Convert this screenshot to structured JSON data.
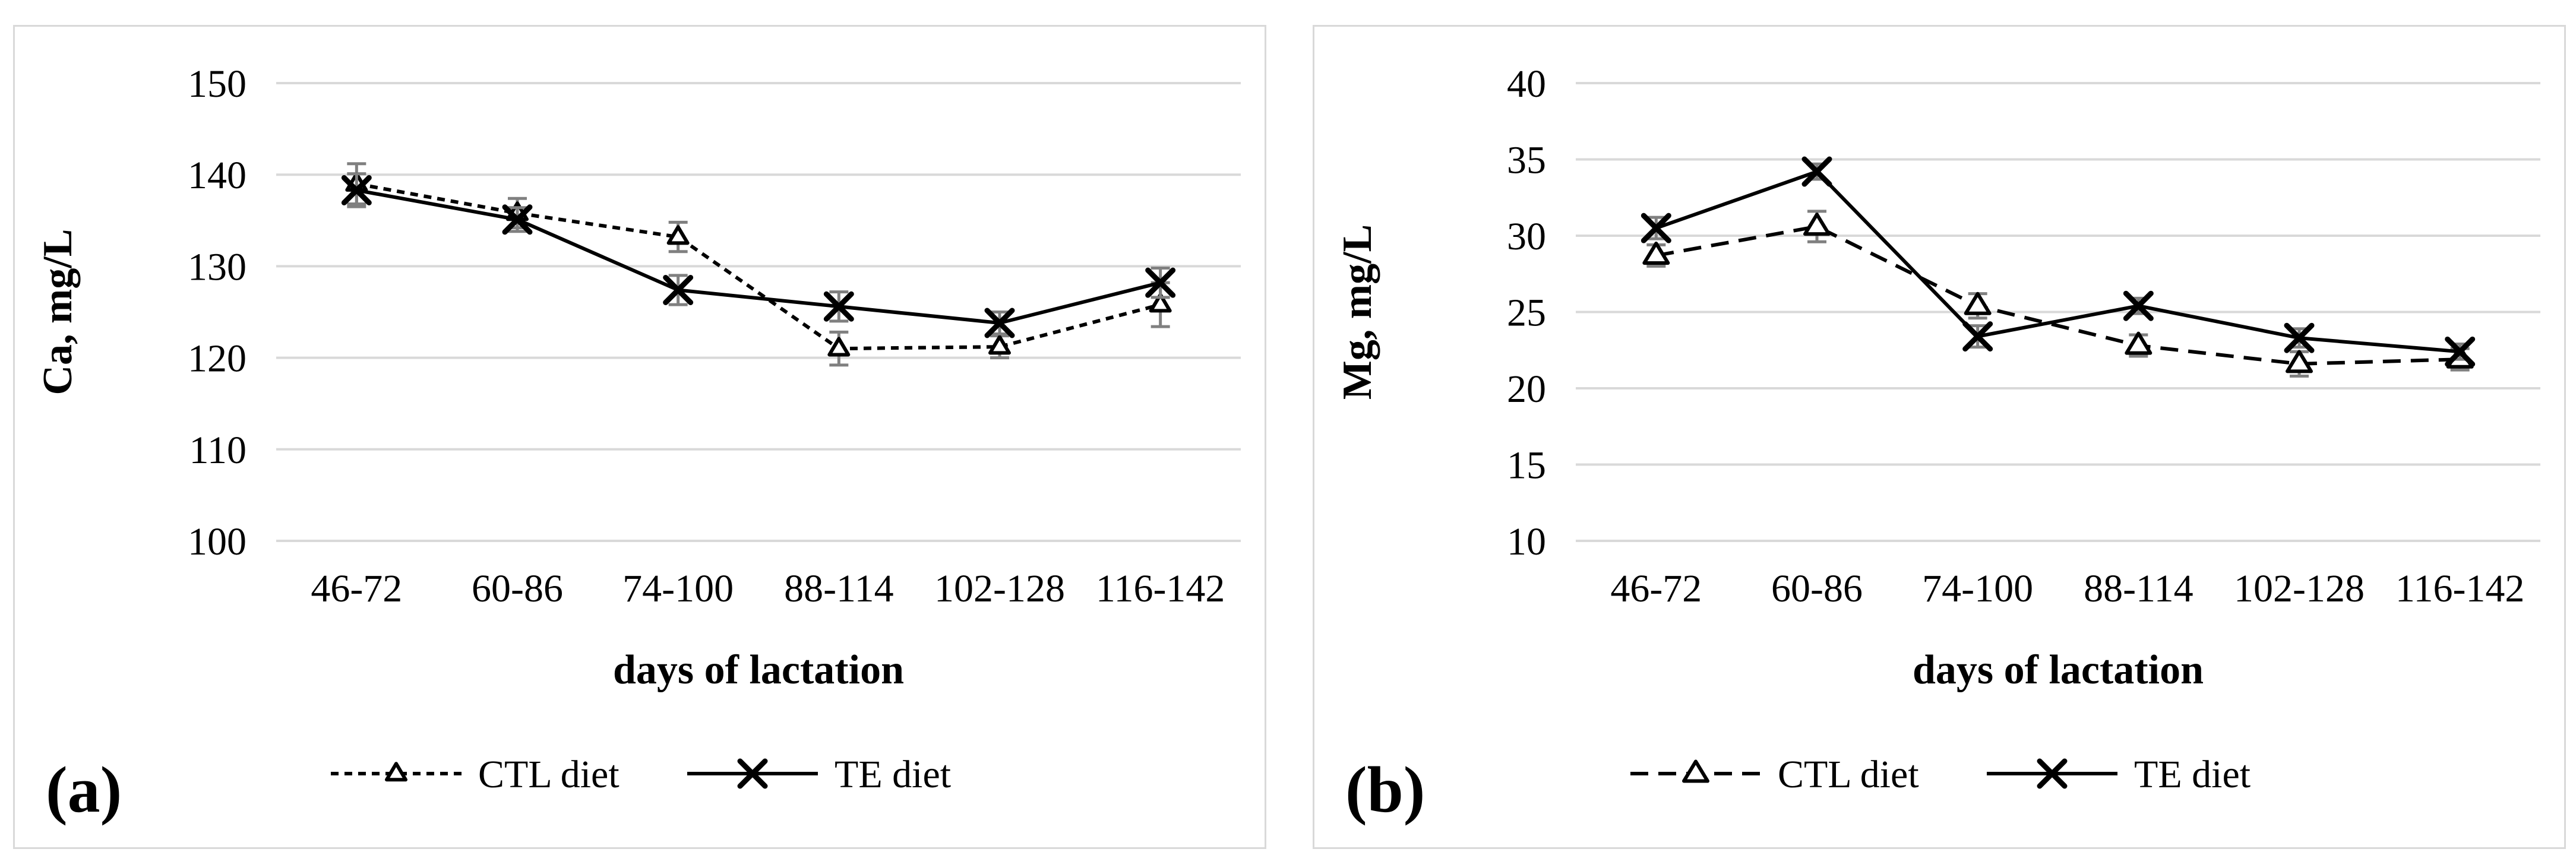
{
  "figure": {
    "background": "#ffffff",
    "panel_border_color": "#d9d9d9",
    "ink_color": "#000000",
    "gridline_color": "#d9d9d9",
    "error_bar_color": "#808080"
  },
  "panels": [
    {
      "label": "(a)",
      "chart_data": {
        "type": "line",
        "title": "",
        "xlabel": "days of lactation",
        "ylabel": "Ca, mg/L",
        "categories": [
          "46-72",
          "60-86",
          "74-100",
          "88-114",
          "102-128",
          "116-142"
        ],
        "yticks": [
          150,
          140,
          130,
          120,
          110,
          100
        ],
        "ylim": [
          100,
          150
        ],
        "grid": true,
        "legend_position": "bottom",
        "series": [
          {
            "name": "CTL diet",
            "line_style": "dashed",
            "marker": "triangle",
            "values": [
              139.0,
              135.8,
              133.2,
              121.0,
              121.2,
              125.8
            ],
            "errors": [
              2.2,
              1.6,
              1.6,
              1.8,
              1.2,
              2.4
            ]
          },
          {
            "name": "TE diet",
            "line_style": "solid",
            "marker": "x",
            "values": [
              138.3,
              135.1,
              127.4,
              125.6,
              123.8,
              128.2
            ],
            "errors": [
              1.8,
              1.3,
              1.6,
              1.6,
              1.2,
              1.6
            ]
          }
        ]
      }
    },
    {
      "label": "(b)",
      "chart_data": {
        "type": "line",
        "title": "",
        "xlabel": "days of lactation",
        "ylabel": "Mg, mg/L",
        "categories": [
          "46-72",
          "60-86",
          "74-100",
          "88-114",
          "102-128",
          "116-142"
        ],
        "yticks": [
          40,
          35,
          30,
          25,
          20,
          15,
          10
        ],
        "ylim": [
          10,
          40
        ],
        "grid": true,
        "legend_position": "bottom",
        "series": [
          {
            "name": "CTL diet",
            "line_style": "dashed",
            "marker": "triangle",
            "values": [
              28.7,
              30.6,
              25.4,
              22.8,
              21.6,
              21.9
            ],
            "errors": [
              0.7,
              1.0,
              0.8,
              0.7,
              0.8,
              0.7
            ]
          },
          {
            "name": "TE diet",
            "line_style": "solid",
            "marker": "x",
            "values": [
              30.5,
              34.2,
              23.4,
              25.4,
              23.3,
              22.4
            ],
            "errors": [
              0.7,
              0.5,
              0.7,
              0.5,
              0.6,
              0.5
            ]
          }
        ]
      }
    }
  ]
}
